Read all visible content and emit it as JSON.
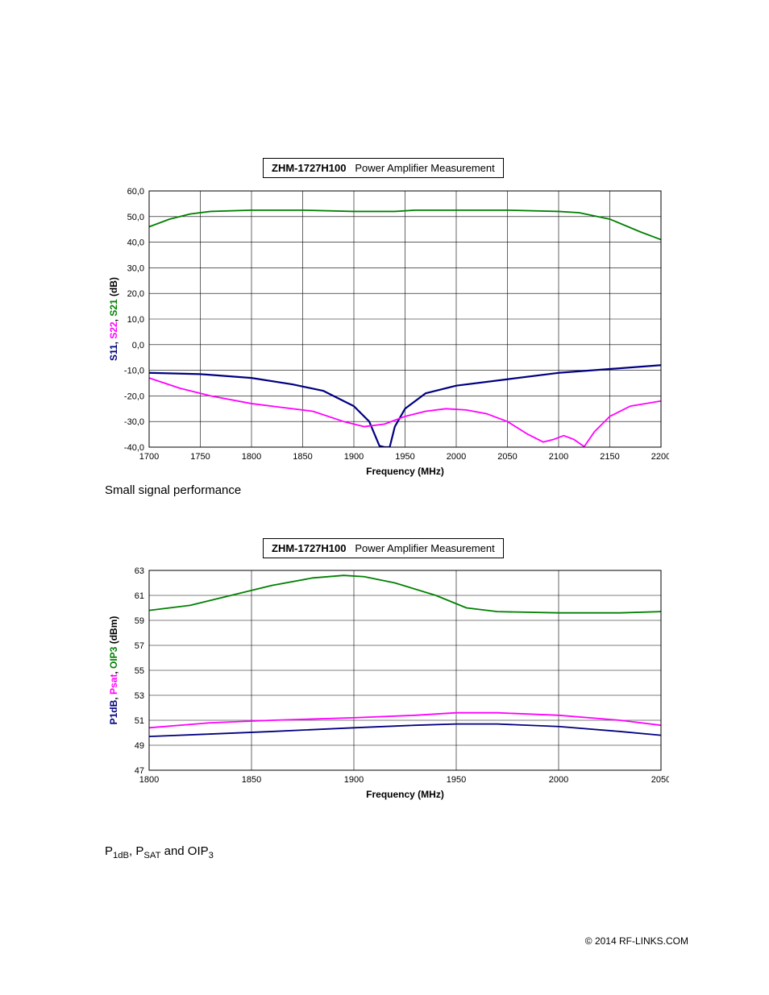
{
  "chart1": {
    "type": "line",
    "title_prefix": "ZHM-1727H100",
    "title_suffix": "Power Amplifier Measurement",
    "xlabel": "Frequency (MHz)",
    "xlim": [
      1700,
      2200
    ],
    "xtick_step": 50,
    "xticks": [
      "1700",
      "1750",
      "1800",
      "1850",
      "1900",
      "1950",
      "2000",
      "2050",
      "2100",
      "2150",
      "2200"
    ],
    "ylim": [
      -40,
      60
    ],
    "ytick_step": 10,
    "yticks": [
      "-40,0",
      "-30,0",
      "-20,0",
      "-10,0",
      "0,0",
      "10,0",
      "20,0",
      "30,0",
      "40,0",
      "50,0",
      "60,0"
    ],
    "y_axis_segments": [
      {
        "text": "S11",
        "color": "#000080"
      },
      {
        "text": ", ",
        "color": "#000000"
      },
      {
        "text": "S22",
        "color": "#ff00ff"
      },
      {
        "text": ", ",
        "color": "#000000"
      },
      {
        "text": "S21",
        "color": "#008000"
      },
      {
        "text": " (dB)",
        "color": "#000000"
      }
    ],
    "plot_background": "#ffffff",
    "grid_color": "#000000",
    "grid_width": 0.6,
    "border_color": "#000000",
    "series": [
      {
        "name": "S21",
        "color": "#008000",
        "width": 1.8,
        "points": [
          [
            1700,
            46
          ],
          [
            1720,
            49
          ],
          [
            1740,
            51
          ],
          [
            1760,
            52
          ],
          [
            1800,
            52.5
          ],
          [
            1850,
            52.5
          ],
          [
            1900,
            52
          ],
          [
            1920,
            52
          ],
          [
            1940,
            52
          ],
          [
            1960,
            52.5
          ],
          [
            2000,
            52.5
          ],
          [
            2050,
            52.5
          ],
          [
            2100,
            52
          ],
          [
            2120,
            51.5
          ],
          [
            2150,
            49
          ],
          [
            2180,
            44
          ],
          [
            2200,
            41
          ]
        ]
      },
      {
        "name": "S11",
        "color": "#000080",
        "width": 2.2,
        "points": [
          [
            1700,
            -11
          ],
          [
            1750,
            -11.5
          ],
          [
            1800,
            -13
          ],
          [
            1840,
            -15.5
          ],
          [
            1870,
            -18
          ],
          [
            1900,
            -24
          ],
          [
            1915,
            -30
          ],
          [
            1925,
            -39.5
          ],
          [
            1930,
            -40
          ],
          [
            1935,
            -40
          ],
          [
            1940,
            -32
          ],
          [
            1950,
            -25
          ],
          [
            1970,
            -19
          ],
          [
            2000,
            -16
          ],
          [
            2050,
            -13.5
          ],
          [
            2100,
            -11
          ],
          [
            2150,
            -9.5
          ],
          [
            2200,
            -8
          ]
        ]
      },
      {
        "name": "S22",
        "color": "#ff00ff",
        "width": 1.8,
        "points": [
          [
            1700,
            -13
          ],
          [
            1730,
            -17
          ],
          [
            1760,
            -20
          ],
          [
            1800,
            -23
          ],
          [
            1830,
            -24.5
          ],
          [
            1860,
            -26
          ],
          [
            1890,
            -30
          ],
          [
            1910,
            -32
          ],
          [
            1930,
            -31
          ],
          [
            1950,
            -28
          ],
          [
            1970,
            -26
          ],
          [
            1990,
            -25
          ],
          [
            2010,
            -25.5
          ],
          [
            2030,
            -27
          ],
          [
            2050,
            -30
          ],
          [
            2070,
            -35
          ],
          [
            2085,
            -38
          ],
          [
            2095,
            -37
          ],
          [
            2105,
            -35.5
          ],
          [
            2115,
            -37
          ],
          [
            2125,
            -39.8
          ],
          [
            2135,
            -34
          ],
          [
            2150,
            -28
          ],
          [
            2170,
            -24
          ],
          [
            2200,
            -22
          ]
        ]
      }
    ]
  },
  "caption1": "Small signal performance",
  "chart2": {
    "type": "line",
    "title_prefix": "ZHM-1727H100",
    "title_suffix": "Power Amplifier Measurement",
    "xlabel": "Frequency (MHz)",
    "xlim": [
      1800,
      2050
    ],
    "xtick_step": 50,
    "xticks": [
      "1800",
      "1850",
      "1900",
      "1950",
      "2000",
      "2050"
    ],
    "ylim": [
      47,
      63
    ],
    "ytick_step": 2,
    "yticks": [
      "47",
      "49",
      "51",
      "53",
      "55",
      "57",
      "59",
      "61",
      "63"
    ],
    "y_axis_segments": [
      {
        "text": "P1dB",
        "color": "#000080"
      },
      {
        "text": ", ",
        "color": "#000000"
      },
      {
        "text": "Psat",
        "color": "#ff00ff"
      },
      {
        "text": ", ",
        "color": "#000000"
      },
      {
        "text": "OIP3",
        "color": "#008000"
      },
      {
        "text": " (dBm)",
        "color": "#000000"
      }
    ],
    "plot_background": "#ffffff",
    "grid_color": "#000000",
    "grid_width": 0.6,
    "border_color": "#000000",
    "series": [
      {
        "name": "OIP3",
        "color": "#008000",
        "width": 1.8,
        "points": [
          [
            1800,
            59.8
          ],
          [
            1820,
            60.2
          ],
          [
            1840,
            61
          ],
          [
            1860,
            61.8
          ],
          [
            1880,
            62.4
          ],
          [
            1895,
            62.6
          ],
          [
            1905,
            62.5
          ],
          [
            1920,
            62
          ],
          [
            1940,
            61
          ],
          [
            1955,
            60
          ],
          [
            1970,
            59.7
          ],
          [
            2000,
            59.6
          ],
          [
            2030,
            59.6
          ],
          [
            2050,
            59.7
          ]
        ]
      },
      {
        "name": "Psat",
        "color": "#ff00ff",
        "width": 1.8,
        "points": [
          [
            1800,
            50.4
          ],
          [
            1830,
            50.8
          ],
          [
            1860,
            51
          ],
          [
            1900,
            51.2
          ],
          [
            1930,
            51.4
          ],
          [
            1950,
            51.6
          ],
          [
            1970,
            51.6
          ],
          [
            2000,
            51.4
          ],
          [
            2030,
            51.0
          ],
          [
            2050,
            50.6
          ]
        ]
      },
      {
        "name": "P1dB",
        "color": "#000080",
        "width": 1.8,
        "points": [
          [
            1800,
            49.7
          ],
          [
            1830,
            49.9
          ],
          [
            1860,
            50.1
          ],
          [
            1900,
            50.4
          ],
          [
            1930,
            50.6
          ],
          [
            1950,
            50.7
          ],
          [
            1970,
            50.7
          ],
          [
            2000,
            50.5
          ],
          [
            2030,
            50.1
          ],
          [
            2050,
            49.8
          ]
        ]
      }
    ]
  },
  "caption2_html": "P<sub>1dB</sub>, P<sub>SAT</sub> and OIP<sub>3</sub>",
  "footer": "© 2014 RF-LINKS.COM"
}
